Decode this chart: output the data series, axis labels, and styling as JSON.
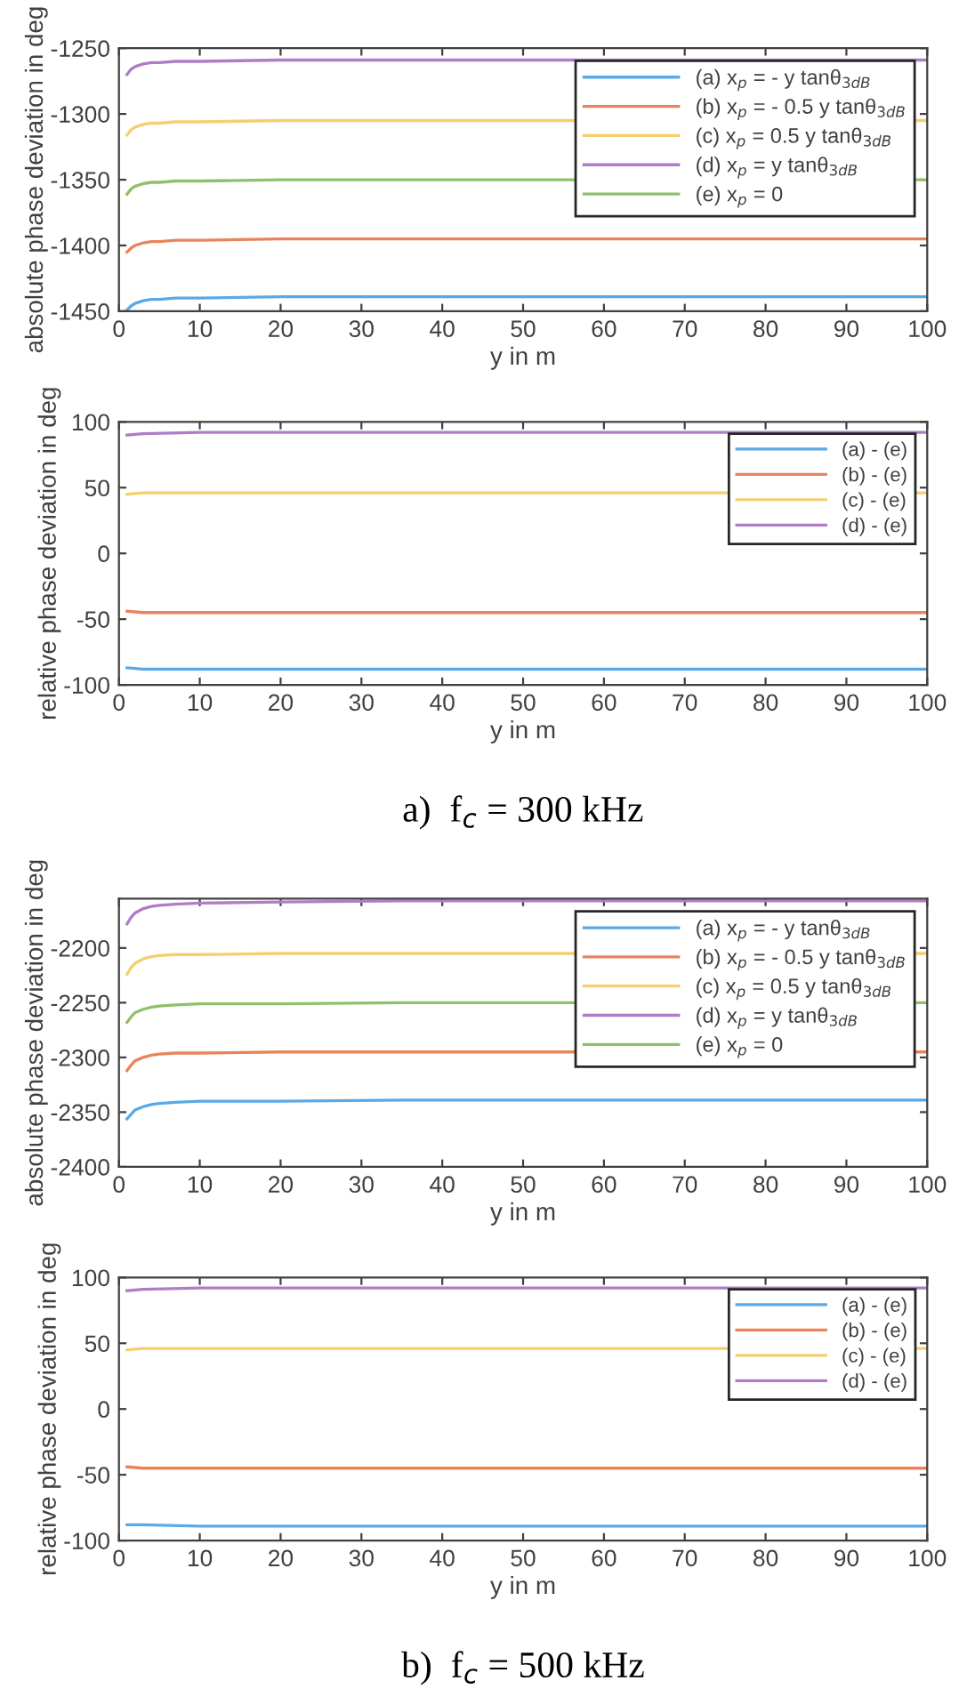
{
  "chart_data": [
    {
      "type": "line",
      "xlabel": "y in m",
      "ylabel": "absolute phase deviation in deg",
      "xlim": [
        0,
        100
      ],
      "xticks": [
        0,
        10,
        20,
        30,
        40,
        50,
        60,
        70,
        80,
        90,
        100
      ],
      "ylim": [
        -1450,
        -1250
      ],
      "yticks": [
        -1450,
        -1400,
        -1350,
        -1300,
        -1250
      ],
      "grid": false,
      "legend": "top right",
      "x": [
        1,
        1.5,
        2,
        3,
        4,
        5,
        7,
        10,
        20,
        35,
        50,
        100
      ],
      "series": [
        {
          "name": "(a) x$_{p}$ = - y tanθ$_{3dB}$",
          "color": "#5aa9e6",
          "values": [
            -1449,
            -1446,
            -1444,
            -1442,
            -1441,
            -1441,
            -1440,
            -1440,
            -1439,
            -1439,
            -1439,
            -1439
          ]
        },
        {
          "name": "(b) x$_{p}$ = - 0.5 y tanθ$_{3dB}$",
          "color": "#e8845a",
          "values": [
            -1405,
            -1402,
            -1400,
            -1398,
            -1397,
            -1397,
            -1396,
            -1396,
            -1395,
            -1395,
            -1395,
            -1395
          ]
        },
        {
          "name": "(c) x$_{p}$ = 0.5 y tanθ$_{3dB}$",
          "color": "#f5cf6e",
          "values": [
            -1316,
            -1312,
            -1310,
            -1308,
            -1307,
            -1307,
            -1306,
            -1306,
            -1305,
            -1305,
            -1305,
            -1305
          ]
        },
        {
          "name": "(d) x$_{p}$ = y tanθ$_{3dB}$",
          "color": "#b07cc6",
          "values": [
            -1270,
            -1266,
            -1264,
            -1262,
            -1261,
            -1261,
            -1260,
            -1260,
            -1259,
            -1259,
            -1259,
            -1259
          ]
        },
        {
          "name": "(e) x$_{p}$ = 0",
          "color": "#8fc06a",
          "values": [
            -1361,
            -1357,
            -1355,
            -1353,
            -1352,
            -1352,
            -1351,
            -1351,
            -1350,
            -1350,
            -1350,
            -1350
          ]
        }
      ]
    },
    {
      "type": "line",
      "xlabel": "y in m",
      "ylabel": "relative phase deviation in deg",
      "xlim": [
        0,
        100
      ],
      "xticks": [
        0,
        10,
        20,
        30,
        40,
        50,
        60,
        70,
        80,
        90,
        100
      ],
      "ylim": [
        -100,
        100
      ],
      "yticks": [
        -100,
        -50,
        0,
        50,
        100
      ],
      "grid": false,
      "legend": "top right",
      "annotations": [
        "a)  f$_{c}$ = 300 kHz"
      ],
      "x": [
        1,
        3,
        10,
        50,
        100
      ],
      "series": [
        {
          "name": "(a) - (e)",
          "color": "#5aa9e6",
          "values": [
            -87,
            -88,
            -88,
            -88,
            -88
          ]
        },
        {
          "name": "(b) - (e)",
          "color": "#e8845a",
          "values": [
            -44,
            -45,
            -45,
            -45,
            -45
          ]
        },
        {
          "name": "(c) - (e)",
          "color": "#f5cf6e",
          "values": [
            45,
            46,
            46,
            46,
            46
          ]
        },
        {
          "name": "(d) - (e)",
          "color": "#b07cc6",
          "values": [
            90,
            91,
            92,
            92,
            92
          ]
        }
      ]
    },
    {
      "type": "line",
      "xlabel": "y in m",
      "ylabel": "absolute phase deviation in deg",
      "xlim": [
        0,
        100
      ],
      "xticks": [
        0,
        10,
        20,
        30,
        40,
        50,
        60,
        70,
        80,
        90,
        100
      ],
      "ylim": [
        -2400,
        -2155
      ],
      "yticks": [
        -2400,
        -2350,
        -2300,
        -2250,
        -2200
      ],
      "grid": false,
      "legend": "top right",
      "x": [
        1,
        1.5,
        2,
        3,
        4,
        5,
        7,
        10,
        20,
        35,
        50,
        100
      ],
      "series": [
        {
          "name": "(a) x$_{p}$ = - y tanθ$_{3dB}$",
          "color": "#5aa9e6",
          "values": [
            -2356,
            -2352,
            -2348,
            -2345,
            -2343,
            -2342,
            -2341,
            -2340,
            -2340,
            -2339,
            -2339,
            -2339
          ]
        },
        {
          "name": "(b) x$_{p}$ = - 0.5 y tanθ$_{3dB}$",
          "color": "#e8845a",
          "values": [
            -2312,
            -2307,
            -2303,
            -2300,
            -2298,
            -2297,
            -2296,
            -2296,
            -2295,
            -2295,
            -2295,
            -2295
          ]
        },
        {
          "name": "(c) x$_{p}$ = 0.5 y tanθ$_{3dB}$",
          "color": "#f5cf6e",
          "values": [
            -2224,
            -2218,
            -2214,
            -2210,
            -2208,
            -2207,
            -2206,
            -2206,
            -2205,
            -2205,
            -2205,
            -2205
          ]
        },
        {
          "name": "(d) x$_{p}$ = y tanθ$_{3dB}$",
          "color": "#b07cc6",
          "values": [
            -2178,
            -2172,
            -2168,
            -2164,
            -2162,
            -2161,
            -2160,
            -2159,
            -2158,
            -2157,
            -2157,
            -2157
          ]
        },
        {
          "name": "(e) x$_{p}$ = 0",
          "color": "#8fc06a",
          "values": [
            -2268,
            -2263,
            -2259,
            -2256,
            -2254,
            -2253,
            -2252,
            -2251,
            -2251,
            -2250,
            -2250,
            -2250
          ]
        }
      ]
    },
    {
      "type": "line",
      "xlabel": "y in m",
      "ylabel": "relative phase deviation in deg",
      "xlim": [
        0,
        100
      ],
      "xticks": [
        0,
        10,
        20,
        30,
        40,
        50,
        60,
        70,
        80,
        90,
        100
      ],
      "ylim": [
        -100,
        100
      ],
      "yticks": [
        -100,
        -50,
        0,
        50,
        100
      ],
      "grid": false,
      "legend": "top right",
      "annotations": [
        "b)  f$_{c}$ = 500 kHz"
      ],
      "x": [
        1,
        3,
        10,
        50,
        100
      ],
      "series": [
        {
          "name": "(a) - (e)",
          "color": "#5aa9e6",
          "values": [
            -88,
            -88,
            -89,
            -89,
            -89
          ]
        },
        {
          "name": "(b) - (e)",
          "color": "#e8845a",
          "values": [
            -44,
            -45,
            -45,
            -45,
            -45
          ]
        },
        {
          "name": "(c) - (e)",
          "color": "#f5cf6e",
          "values": [
            45,
            46,
            46,
            46,
            46
          ]
        },
        {
          "name": "(d) - (e)",
          "color": "#b07cc6",
          "values": [
            90,
            91,
            92,
            92,
            92
          ]
        }
      ]
    }
  ]
}
